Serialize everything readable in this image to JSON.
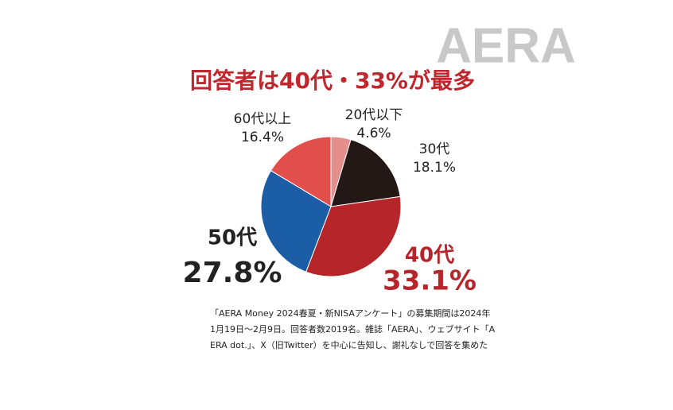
{
  "chart_data": {
    "type": "pie",
    "title": "回答者は40代・33%が最多",
    "watermark": "AERA",
    "categories": [
      "20代以下",
      "30代",
      "40代",
      "50代",
      "60代以上"
    ],
    "values": [
      4.6,
      18.1,
      33.1,
      27.8,
      16.4
    ],
    "value_labels": [
      "4.6%",
      "18.1%",
      "33.1%",
      "27.8%",
      "16.4%"
    ],
    "colors": [
      "#e58f8c",
      "#231815",
      "#b5252a",
      "#1b5ea6",
      "#e04f4c"
    ],
    "notes": [
      "「AERA Money 2024春夏・新NISAアンケート」の募集期間は2024年",
      "1月19日〜2月9日。回答者数2019名。雑誌「AERA」、ウェブサイト「A",
      "ERA dot.」、X（旧Twitter）を中心に告知し、謝礼なしで回答を集めた"
    ]
  }
}
